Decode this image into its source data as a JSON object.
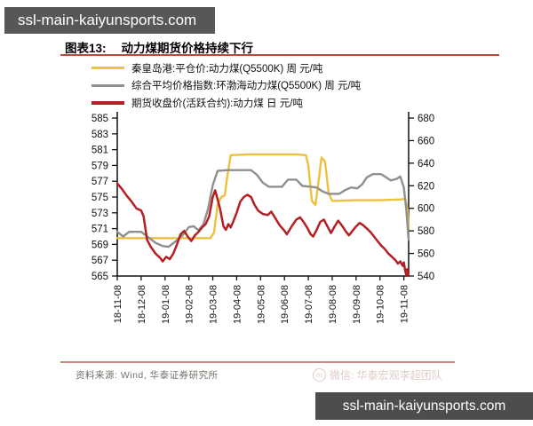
{
  "banners": {
    "top": "ssl-main-kaiyunsports.com",
    "bottom": "ssl-main-kaiyunsports.com"
  },
  "figure": {
    "label": "图表13:",
    "title": "动力煤期货价格持续下行",
    "source": "资料来源: Wind, 华泰证券研究所",
    "watermark": "微信: 华泰宏观李超团队"
  },
  "chart_data": {
    "type": "line",
    "title": "动力煤期货价格持续下行",
    "grid": false,
    "legend_position": "top-left",
    "x_tick_labels": [
      "18-11-08",
      "18-12-08",
      "19-01-08",
      "19-02-08",
      "19-03-08",
      "19-04-08",
      "19-05-08",
      "19-06-08",
      "19-07-08",
      "19-08-08",
      "19-09-08",
      "19-10-08",
      "19-11-08"
    ],
    "x_range": [
      0,
      12.2
    ],
    "left_axis": {
      "min": 565,
      "max": 585,
      "ticks": [
        585,
        583,
        581,
        579,
        577,
        575,
        573,
        571,
        569,
        567,
        565
      ]
    },
    "right_axis": {
      "min": 540,
      "max": 680,
      "ticks": [
        680,
        660,
        640,
        620,
        600,
        580,
        560,
        540
      ]
    },
    "series": [
      {
        "name": "秦皇岛港:平仓价:动力煤(Q5500K) 周 元/吨",
        "color": "#EDC13C",
        "axis": "left",
        "stroke_width": 2.4,
        "legend_dash_height": 3,
        "points": [
          [
            0,
            569.8
          ],
          [
            3.0,
            569.8
          ],
          [
            3.9,
            569.8
          ],
          [
            4.05,
            570.5
          ],
          [
            4.2,
            574
          ],
          [
            4.35,
            575
          ],
          [
            4.5,
            575.2
          ],
          [
            4.6,
            577.5
          ],
          [
            4.75,
            580.3
          ],
          [
            5.5,
            580.4
          ],
          [
            6.5,
            580.4
          ],
          [
            7.5,
            580.4
          ],
          [
            7.9,
            580.3
          ],
          [
            8.0,
            579
          ],
          [
            8.15,
            574.5
          ],
          [
            8.3,
            574
          ],
          [
            8.45,
            577.5
          ],
          [
            8.55,
            580
          ],
          [
            8.7,
            579.5
          ],
          [
            8.85,
            575.5
          ],
          [
            9.0,
            574.5
          ],
          [
            10,
            574.6
          ],
          [
            11,
            574.6
          ],
          [
            11.9,
            574.7
          ],
          [
            12.05,
            574.8
          ],
          [
            12.15,
            573.5
          ],
          [
            12.2,
            571
          ]
        ]
      },
      {
        "name": "综合平均价格指数:环渤海动力煤(Q5500K) 周 元/吨",
        "color": "#8F8F8F",
        "axis": "left",
        "stroke_width": 2.4,
        "legend_dash_height": 3,
        "points": [
          [
            0,
            570.6
          ],
          [
            0.25,
            570
          ],
          [
            0.5,
            570.6
          ],
          [
            1.0,
            570.6
          ],
          [
            1.3,
            569.9
          ],
          [
            1.6,
            569.2
          ],
          [
            1.9,
            568.8
          ],
          [
            2.15,
            568.7
          ],
          [
            2.45,
            569.4
          ],
          [
            2.75,
            570.2
          ],
          [
            3.0,
            571.2
          ],
          [
            3.2,
            571.3
          ],
          [
            3.4,
            570.8
          ],
          [
            3.6,
            571.5
          ],
          [
            3.8,
            573.5
          ],
          [
            4.0,
            576.5
          ],
          [
            4.2,
            578.3
          ],
          [
            4.6,
            578.4
          ],
          [
            5.0,
            578.4
          ],
          [
            5.6,
            578.4
          ],
          [
            5.85,
            577.8
          ],
          [
            6.1,
            576.8
          ],
          [
            6.35,
            576.3
          ],
          [
            6.6,
            576.3
          ],
          [
            6.9,
            576.3
          ],
          [
            7.15,
            577.2
          ],
          [
            7.5,
            577.2
          ],
          [
            7.75,
            576.4
          ],
          [
            8.1,
            576.3
          ],
          [
            8.35,
            576.2
          ],
          [
            8.6,
            575.7
          ],
          [
            8.85,
            575.4
          ],
          [
            9.3,
            575.4
          ],
          [
            9.55,
            575.9
          ],
          [
            9.8,
            576.2
          ],
          [
            10.05,
            576.1
          ],
          [
            10.25,
            576.6
          ],
          [
            10.45,
            577.5
          ],
          [
            10.7,
            577.9
          ],
          [
            11.05,
            577.9
          ],
          [
            11.25,
            577.5
          ],
          [
            11.45,
            577.1
          ],
          [
            11.7,
            577.3
          ],
          [
            11.85,
            577.6
          ],
          [
            12.0,
            576.2
          ],
          [
            12.1,
            573.5
          ],
          [
            12.2,
            569.6
          ]
        ]
      },
      {
        "name": "期货收盘价(活跃合约):动力煤 日 元/吨",
        "color": "#B41F24",
        "axis": "right",
        "stroke_width": 2.5,
        "legend_dash_height": 4,
        "points": [
          [
            0,
            622
          ],
          [
            0.2,
            617
          ],
          [
            0.4,
            611
          ],
          [
            0.6,
            606
          ],
          [
            0.8,
            600
          ],
          [
            1.0,
            598
          ],
          [
            1.1,
            593
          ],
          [
            1.25,
            572
          ],
          [
            1.4,
            566
          ],
          [
            1.6,
            560
          ],
          [
            1.8,
            556
          ],
          [
            1.9,
            553
          ],
          [
            2.05,
            557
          ],
          [
            2.2,
            555
          ],
          [
            2.35,
            560
          ],
          [
            2.5,
            568
          ],
          [
            2.65,
            577
          ],
          [
            2.8,
            580
          ],
          [
            2.95,
            575
          ],
          [
            3.1,
            571
          ],
          [
            3.25,
            576
          ],
          [
            3.4,
            579
          ],
          [
            3.55,
            583
          ],
          [
            3.7,
            586
          ],
          [
            3.85,
            593
          ],
          [
            4.0,
            610
          ],
          [
            4.1,
            616
          ],
          [
            4.3,
            600
          ],
          [
            4.45,
            584
          ],
          [
            4.55,
            581
          ],
          [
            4.65,
            586
          ],
          [
            4.75,
            583
          ],
          [
            4.85,
            588
          ],
          [
            5.0,
            596
          ],
          [
            5.15,
            606
          ],
          [
            5.3,
            610
          ],
          [
            5.45,
            612
          ],
          [
            5.6,
            610
          ],
          [
            5.75,
            603
          ],
          [
            5.9,
            598
          ],
          [
            6.1,
            595
          ],
          [
            6.3,
            594
          ],
          [
            6.45,
            597
          ],
          [
            6.6,
            592
          ],
          [
            6.8,
            585
          ],
          [
            7.0,
            580
          ],
          [
            7.1,
            577
          ],
          [
            7.3,
            584
          ],
          [
            7.5,
            590
          ],
          [
            7.65,
            592
          ],
          [
            7.8,
            588
          ],
          [
            7.95,
            583
          ],
          [
            8.1,
            577
          ],
          [
            8.2,
            575
          ],
          [
            8.35,
            581
          ],
          [
            8.5,
            588
          ],
          [
            8.65,
            590
          ],
          [
            8.8,
            584
          ],
          [
            8.95,
            578
          ],
          [
            9.1,
            584
          ],
          [
            9.25,
            589
          ],
          [
            9.4,
            585
          ],
          [
            9.55,
            580
          ],
          [
            9.7,
            576
          ],
          [
            9.85,
            580
          ],
          [
            10.0,
            584
          ],
          [
            10.15,
            587
          ],
          [
            10.3,
            585
          ],
          [
            10.45,
            582
          ],
          [
            10.6,
            579
          ],
          [
            10.75,
            575
          ],
          [
            10.9,
            571
          ],
          [
            11.05,
            567
          ],
          [
            11.2,
            564
          ],
          [
            11.35,
            560
          ],
          [
            11.5,
            557
          ],
          [
            11.65,
            554
          ],
          [
            11.75,
            551
          ],
          [
            11.85,
            553
          ],
          [
            11.95,
            549
          ],
          [
            12.0,
            552
          ],
          [
            12.05,
            545
          ],
          [
            12.1,
            541
          ],
          [
            12.13,
            546
          ],
          [
            12.16,
            540
          ],
          [
            12.2,
            544
          ]
        ]
      }
    ]
  }
}
